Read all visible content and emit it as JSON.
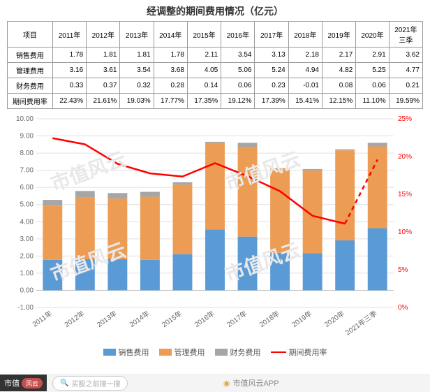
{
  "title": "经调整的期间费用情况（亿元）",
  "table": {
    "row_header": "项目",
    "columns": [
      "2011年",
      "2012年",
      "2013年",
      "2014年",
      "2015年",
      "2016年",
      "2017年",
      "2018年",
      "2019年",
      "2020年",
      "2021年三季"
    ],
    "rows": [
      {
        "label": "销售费用",
        "values": [
          "1.78",
          "1.81",
          "1.81",
          "1.78",
          "2.11",
          "3.54",
          "3.13",
          "2.18",
          "2.17",
          "2.91",
          "3.62"
        ]
      },
      {
        "label": "管理费用",
        "values": [
          "3.16",
          "3.61",
          "3.54",
          "3.68",
          "4.05",
          "5.06",
          "5.24",
          "4.94",
          "4.82",
          "5.25",
          "4.77"
        ]
      },
      {
        "label": "财务费用",
        "values": [
          "0.33",
          "0.37",
          "0.32",
          "0.28",
          "0.14",
          "0.06",
          "0.23",
          "-0.01",
          "0.08",
          "0.06",
          "0.21"
        ]
      },
      {
        "label": "期间费用率",
        "values": [
          "22.43%",
          "21.61%",
          "19.03%",
          "17.77%",
          "17.35%",
          "19.12%",
          "17.39%",
          "15.41%",
          "12.15%",
          "11.10%",
          "19.59%"
        ]
      }
    ]
  },
  "chart": {
    "type": "stacked-bar-with-line",
    "categories": [
      "2011年",
      "2012年",
      "2013年",
      "2014年",
      "2015年",
      "2016年",
      "2017年",
      "2018年",
      "2019年",
      "2020年",
      "2021年三季"
    ],
    "series": [
      {
        "name": "销售费用",
        "color": "#5b9bd5",
        "values": [
          1.78,
          1.81,
          1.81,
          1.78,
          2.11,
          3.54,
          3.13,
          2.18,
          2.17,
          2.91,
          3.62
        ]
      },
      {
        "name": "管理费用",
        "color": "#ed9c54",
        "values": [
          3.16,
          3.61,
          3.54,
          3.68,
          4.05,
          5.06,
          5.24,
          4.94,
          4.82,
          5.25,
          4.77
        ]
      },
      {
        "name": "财务费用",
        "color": "#a6a6a6",
        "values": [
          0.33,
          0.37,
          0.32,
          0.28,
          0.14,
          0.06,
          0.23,
          -0.01,
          0.08,
          0.06,
          0.21
        ]
      }
    ],
    "line": {
      "name": "期间费用率",
      "color": "#ff0000",
      "values": [
        22.43,
        21.61,
        19.03,
        17.77,
        17.35,
        19.12,
        17.39,
        15.41,
        12.15,
        11.1,
        19.59
      ],
      "dashed_after_index": 9
    },
    "y_left": {
      "min": -1.0,
      "max": 10.0,
      "step": 1.0,
      "label_fontsize": 10,
      "label_color": "#666"
    },
    "y_right": {
      "min": 0,
      "max": 25,
      "step": 5,
      "suffix": "%",
      "label_fontsize": 10,
      "label_color": "#ff0000"
    },
    "xlabel_fontsize": 10,
    "xlabel_rotation": -35,
    "xlabel_color": "#666",
    "grid_color": "#e0e0e0",
    "axis_color": "#bfbfbf",
    "background": "#ffffff",
    "bar_width_ratio": 0.6
  },
  "legend": {
    "items": [
      {
        "label": "销售费用",
        "type": "box",
        "color": "#5b9bd5"
      },
      {
        "label": "管理费用",
        "type": "box",
        "color": "#ed9c54"
      },
      {
        "label": "财务费用",
        "type": "box",
        "color": "#a6a6a6"
      },
      {
        "label": "期间费用率",
        "type": "line",
        "color": "#ff0000"
      }
    ]
  },
  "watermark_text": "市值风云",
  "footer": {
    "brand": "市值",
    "brand_pill": "风云",
    "search_placeholder": "买股之前搜一搜",
    "center_text": "市值风云APP"
  }
}
